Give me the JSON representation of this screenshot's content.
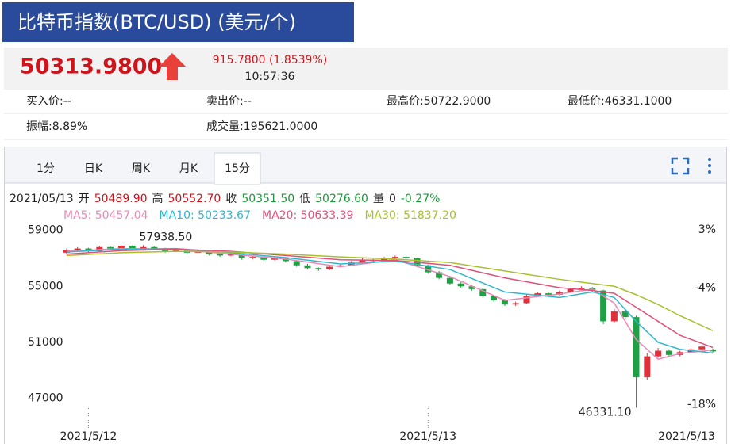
{
  "header": {
    "title": "比特币指数(BTC/USD) (美元/个)"
  },
  "quote": {
    "price": "50313.9800",
    "change": "915.7800 (1.8539%)",
    "time": "10:57:36"
  },
  "stats": [
    [
      "买入价:--",
      "卖出价:--",
      "最高价:50722.9000",
      "最低价:46331.1000"
    ],
    [
      "振幅:8.89%",
      "成交量:195621.0000"
    ]
  ],
  "tabs": {
    "items": [
      "1分",
      "日K",
      "周K",
      "月K",
      "15分"
    ],
    "active": 4
  },
  "chart_data": {
    "type": "candlestick",
    "info": [
      {
        "text": "2021/05/13",
        "color": "#222222"
      },
      {
        "text": "开",
        "color": "#222222"
      },
      {
        "text": "50489.90",
        "color": "#d0131a"
      },
      {
        "text": "高",
        "color": "#222222"
      },
      {
        "text": "50552.70",
        "color": "#d0131a"
      },
      {
        "text": "收",
        "color": "#222222"
      },
      {
        "text": "50351.50",
        "color": "#1a9a3a"
      },
      {
        "text": "低",
        "color": "#222222"
      },
      {
        "text": "50276.60",
        "color": "#1a9a3a"
      },
      {
        "text": "量",
        "color": "#222222"
      },
      {
        "text": "0",
        "color": "#222222"
      },
      {
        "text": "-0.27%",
        "color": "#1a9a3a"
      }
    ],
    "candles": {
      "open": [
        57400,
        57600,
        57700,
        57500,
        57800,
        57700,
        57900,
        57600,
        57800,
        57700,
        57500,
        57600,
        57400,
        57500,
        57300,
        57200,
        57300,
        57000,
        57100,
        56900,
        57000,
        56800,
        56500,
        56300,
        56200,
        56400,
        56500,
        56700,
        56900,
        56800,
        57000,
        57100,
        57000,
        56500,
        56000,
        55600,
        55200,
        55000,
        54800,
        54300,
        54000,
        53700,
        53800,
        54300,
        54500,
        54400,
        54600,
        54800,
        54900,
        54700,
        52500,
        53200,
        52800,
        48500,
        50000,
        50400,
        50100,
        50300,
        50500,
        50489.9
      ],
      "high": [
        57700,
        57800,
        57750,
        57900,
        57850,
        57920,
        57930,
        57938.5,
        57850,
        57750,
        57700,
        57650,
        57600,
        57550,
        57350,
        57400,
        57350,
        57200,
        57150,
        57100,
        57050,
        56850,
        56600,
        56350,
        56500,
        56600,
        56800,
        57000,
        56950,
        57100,
        57200,
        57150,
        57050,
        56550,
        56100,
        55700,
        55300,
        55100,
        54900,
        54400,
        54100,
        53900,
        54400,
        54600,
        54550,
        54700,
        54900,
        55000,
        54950,
        54750,
        53400,
        53300,
        52900,
        50200,
        50600,
        50500,
        50400,
        50600,
        50800,
        50552.7
      ],
      "low": [
        57300,
        57500,
        57400,
        57450,
        57600,
        57650,
        57550,
        57550,
        57600,
        57400,
        57450,
        57300,
        57350,
        57200,
        57100,
        57150,
        56900,
        56950,
        56800,
        56850,
        56700,
        56400,
        56200,
        56100,
        56150,
        56350,
        56450,
        56650,
        56700,
        56750,
        56950,
        56900,
        56400,
        55900,
        55500,
        55100,
        54900,
        54700,
        54200,
        53900,
        53600,
        53600,
        53750,
        54250,
        54300,
        54350,
        54550,
        54750,
        54600,
        52300,
        52400,
        52600,
        46331.1,
        48300,
        49900,
        50000,
        50000,
        50250,
        50450,
        50276.6
      ],
      "close": [
        57600,
        57700,
        57500,
        57800,
        57700,
        57900,
        57600,
        57800,
        57700,
        57500,
        57600,
        57400,
        57500,
        57300,
        57200,
        57300,
        57000,
        57100,
        56900,
        57000,
        56800,
        56500,
        56300,
        56200,
        56400,
        56500,
        56700,
        56900,
        56800,
        57000,
        57100,
        57000,
        56500,
        56000,
        55600,
        55200,
        55000,
        54800,
        54300,
        54000,
        53700,
        53800,
        54300,
        54500,
        54400,
        54600,
        54800,
        54900,
        54700,
        52500,
        53200,
        52800,
        48500,
        50000,
        50400,
        50100,
        50300,
        50500,
        50700,
        50351.5
      ]
    },
    "up_color": "#e0303a",
    "down_color": "#1fa045",
    "series": [
      {
        "name": "MA5: 50457.04",
        "color": "#e98ab6",
        "x": [
          0,
          5,
          10,
          15,
          20,
          25,
          30,
          35,
          40,
          45,
          48,
          50,
          52,
          54,
          56,
          59
        ],
        "values": [
          57500,
          57700,
          57650,
          57300,
          56950,
          56400,
          56900,
          55700,
          54000,
          54450,
          54800,
          53800,
          51200,
          49800,
          50200,
          50457.04
        ]
      },
      {
        "name": "MA10: 50233.67",
        "color": "#33b6cc",
        "x": [
          0,
          5,
          10,
          15,
          20,
          25,
          30,
          35,
          40,
          45,
          48,
          50,
          52,
          54,
          56,
          59
        ],
        "values": [
          57450,
          57650,
          57700,
          57400,
          57050,
          56600,
          56800,
          56200,
          54600,
          54200,
          54600,
          54200,
          52500,
          51000,
          50500,
          50233.67
        ]
      },
      {
        "name": "MA20: 50633.39",
        "color": "#e0507a",
        "x": [
          0,
          5,
          10,
          15,
          20,
          25,
          30,
          35,
          40,
          45,
          48,
          50,
          52,
          54,
          56,
          59
        ],
        "values": [
          57300,
          57550,
          57650,
          57500,
          57200,
          56900,
          56850,
          56500,
          55600,
          54900,
          54700,
          54500,
          53500,
          52500,
          51500,
          50633.39
        ]
      },
      {
        "name": "MA30: 51837.20",
        "color": "#a8c030",
        "x": [
          0,
          5,
          10,
          15,
          20,
          25,
          30,
          35,
          40,
          45,
          48,
          50,
          52,
          54,
          56,
          59
        ],
        "values": [
          57200,
          57400,
          57500,
          57450,
          57300,
          57100,
          56950,
          56700,
          56100,
          55500,
          55200,
          55000,
          54400,
          53700,
          52900,
          51837.2
        ]
      }
    ],
    "max_label": "57938.50",
    "min_label": "46331.10",
    "xlim": [
      -0.5,
      59.5
    ],
    "xticks": [
      {
        "value": 2,
        "label": "2021/5/12"
      },
      {
        "value": 33,
        "label": "2021/5/13"
      },
      {
        "value": 57,
        "label": "2021/5/13"
      }
    ],
    "ylim": [
      44600,
      59600
    ],
    "yticks": [
      47000,
      51000,
      55000,
      59000
    ],
    "y2lim": [
      -21.3,
      3.95
    ],
    "y2ticks": [
      {
        "value": 3,
        "label": "3%"
      },
      {
        "value": -4,
        "label": "-4%"
      },
      {
        "value": -18,
        "label": "-18%"
      }
    ],
    "grid": false
  }
}
